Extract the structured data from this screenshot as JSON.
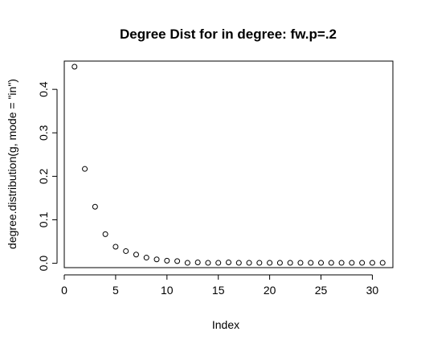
{
  "chart_data": {
    "type": "scatter",
    "title": "Degree Dist for in degree: fw.p=.2",
    "xlabel": "Index",
    "ylabel": "degree.distribution(g, mode = \"in\")",
    "xlim": [
      0,
      32
    ],
    "ylim": [
      -0.01,
      0.465
    ],
    "xticks": [
      0,
      5,
      10,
      15,
      20,
      25,
      30
    ],
    "yticks": [
      0.0,
      0.1,
      0.2,
      0.3,
      0.4
    ],
    "ytick_labels": [
      "0.0",
      "0.1",
      "0.2",
      "0.3",
      "0.4"
    ],
    "grid": false,
    "marker": "open-circle",
    "x": [
      1,
      2,
      3,
      4,
      5,
      6,
      7,
      8,
      9,
      10,
      11,
      12,
      13,
      14,
      15,
      16,
      17,
      18,
      19,
      20,
      21,
      22,
      23,
      24,
      25,
      26,
      27,
      28,
      29,
      30,
      31
    ],
    "y": [
      0.452,
      0.217,
      0.13,
      0.067,
      0.038,
      0.028,
      0.02,
      0.013,
      0.009,
      0.006,
      0.005,
      0.001,
      0.002,
      0.001,
      0.001,
      0.002,
      0.001,
      0.001,
      0.001,
      0.001,
      0.001,
      0.001,
      0.001,
      0.001,
      0.001,
      0.001,
      0.001,
      0.001,
      0.001,
      0.001,
      0.001
    ]
  }
}
